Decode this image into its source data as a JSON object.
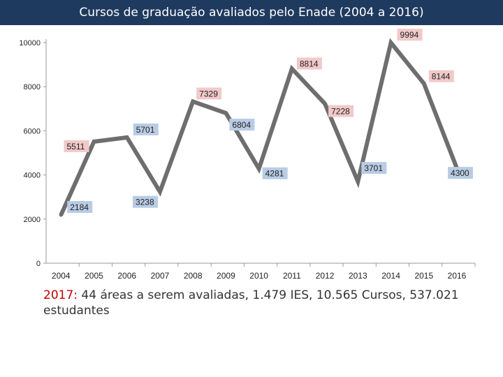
{
  "title": "Cursos de graduação avaliados pelo Enade (2004 a 2016)",
  "chart_data": {
    "type": "line",
    "title": "",
    "xlabel": "",
    "ylabel": "",
    "categories": [
      "2004",
      "2005",
      "2006",
      "2007",
      "2008",
      "2009",
      "2010",
      "2011",
      "2012",
      "2013",
      "2014",
      "2015",
      "2016"
    ],
    "series": [
      {
        "values": [
          2184,
          5511,
          5701,
          3238,
          7329,
          6804,
          4281,
          8814,
          7228,
          3701,
          9994,
          8144,
          4300
        ]
      }
    ],
    "ylim": [
      0,
      10000
    ],
    "yticks": [
      "0",
      "2000",
      "4000",
      "6000",
      "8000",
      "10000"
    ],
    "grid": false,
    "legend": "none",
    "line_color": "#6e6e6e",
    "label_colors": {
      "2184": "#b9cce4",
      "5511": "#f2c9c9",
      "5701": "#b9cce4",
      "3238": "#b9cce4",
      "7329": "#f2c9c9",
      "6804": "#b9cce4",
      "4281": "#b9cce4",
      "8814": "#f2c9c9",
      "7228": "#f2c9c9",
      "3701": "#b9cce4",
      "9994": "#f2c9c9",
      "8144": "#f2c9c9",
      "4300": "#b9cce4"
    }
  },
  "caption": {
    "year": "2017:",
    "text": " 44 áreas a serem avaliadas, 1.479 IES, 10.565 Cursos, 537.021 estudantes"
  },
  "colors": {
    "header_bg": "#1f3a5f",
    "caption_year": "#c00000"
  }
}
